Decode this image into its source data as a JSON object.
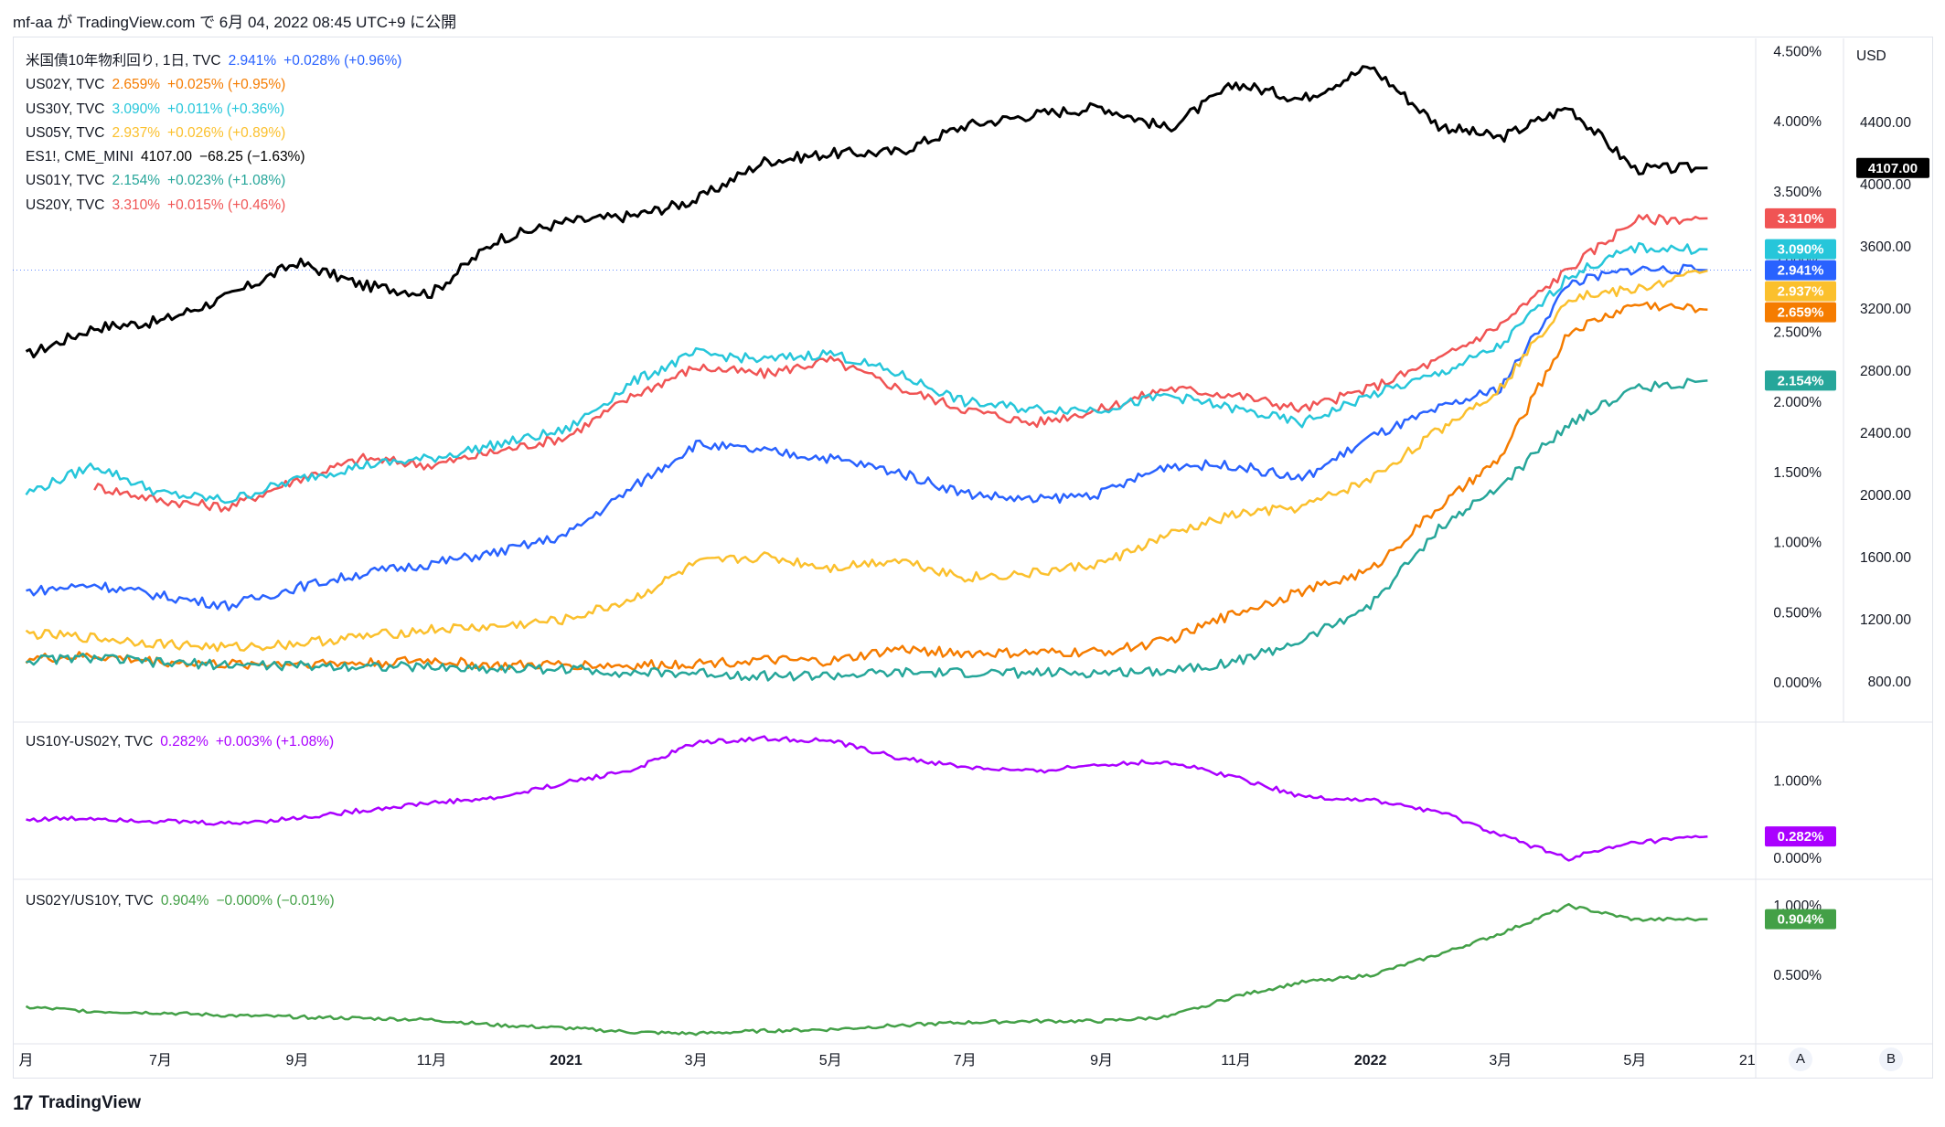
{
  "header": {
    "text": "mf-aa が TradingView.com で 6月 04, 2022 08:45 UTC+9 に公開"
  },
  "legend_main": [
    {
      "name": "米国債10年物利回り, 1日, TVC",
      "value": "2.941%",
      "change": "+0.028% (+0.96%)",
      "color": "#2962ff"
    },
    {
      "name": "US02Y, TVC",
      "value": "2.659%",
      "change": "+0.025% (+0.95%)",
      "color": "#f57c00"
    },
    {
      "name": "US30Y, TVC",
      "value": "3.090%",
      "change": "+0.011% (+0.36%)",
      "color": "#26c6da"
    },
    {
      "name": "US05Y, TVC",
      "value": "2.937%",
      "change": "+0.026% (+0.89%)",
      "color": "#fbc02d"
    },
    {
      "name": "ES1!, CME_MINI",
      "value": "4107.00",
      "change": "−68.25 (−1.63%)",
      "color": "#000000"
    },
    {
      "name": "US01Y, TVC",
      "value": "2.154%",
      "change": "+0.023% (+1.08%)",
      "color": "#26a69a"
    },
    {
      "name": "US20Y, TVC",
      "value": "3.310%",
      "change": "+0.015% (+0.46%)",
      "color": "#f05454"
    }
  ],
  "legend_pane2": {
    "name": "US10Y-US02Y, TVC",
    "value": "0.282%",
    "change": "+0.003% (+1.08%)",
    "color": "#aa00ff"
  },
  "legend_pane3": {
    "name": "US02Y/US10Y, TVC",
    "value": "0.904%",
    "change": "−0.000% (−0.01%)",
    "color": "#43a047"
  },
  "axis_right1": [
    "4.500%",
    "4.000%",
    "3.500%",
    "3.000%",
    "2.500%",
    "2.000%",
    "1.500%",
    "1.000%",
    "0.500%",
    "0.000%"
  ],
  "axis_right1_values": [
    4.5,
    4.0,
    3.5,
    3.0,
    2.5,
    2.0,
    1.5,
    1.0,
    0.5,
    0.0
  ],
  "axis_right2_unit": "USD",
  "axis_right2": [
    "4400.00",
    "4000.00",
    "3600.00",
    "3200.00",
    "2800.00",
    "2400.00",
    "2000.00",
    "1600.00",
    "1200.00",
    "800.00"
  ],
  "axis_right2_values": [
    4400,
    4000,
    3600,
    3200,
    2800,
    2400,
    2000,
    1600,
    1200,
    800
  ],
  "axis_pane2": [
    "1.000%",
    "0.000%"
  ],
  "axis_pane2_values": [
    1.0,
    0.0
  ],
  "axis_pane3": [
    "1.000%",
    "0.500%"
  ],
  "axis_pane3_values": [
    1.0,
    0.5
  ],
  "x_ticks": [
    "月",
    "7月",
    "9月",
    "11月",
    "2021",
    "3月",
    "5月",
    "7月",
    "9月",
    "11月",
    "2022",
    "3月",
    "5月",
    "21"
  ],
  "x_tick_dates": [
    "2020-05-01",
    "2020-07-01",
    "2020-09-01",
    "2020-11-01",
    "2021-01-01",
    "2021-03-01",
    "2021-05-01",
    "2021-07-01",
    "2021-09-01",
    "2021-11-01",
    "2022-01-01",
    "2022-03-01",
    "2022-05-01",
    "2022-06-21"
  ],
  "price_labels": [
    {
      "text": "4107.00",
      "color": "#000000"
    },
    {
      "text": "3.310%",
      "color": "#f05454"
    },
    {
      "text": "3.090%",
      "color": "#26c6da"
    },
    {
      "text": "2.941%",
      "color": "#2962ff"
    },
    {
      "text": "2.937%",
      "color": "#fbc02d"
    },
    {
      "text": "2.659%",
      "color": "#f57c00"
    },
    {
      "text": "2.154%",
      "color": "#26a69a"
    },
    {
      "text": "0.282%",
      "color": "#aa00ff"
    },
    {
      "text": "0.904%",
      "color": "#43a047"
    }
  ],
  "scale_buttons": {
    "a": "A",
    "b": "B"
  },
  "footer": {
    "brand": "TradingView",
    "logo": "17"
  },
  "chart_data": {
    "type": "line",
    "x_dates": [
      "2020-05-01",
      "2020-06-01",
      "2020-07-01",
      "2020-08-01",
      "2020-09-01",
      "2020-10-01",
      "2020-11-01",
      "2020-12-01",
      "2021-01-01",
      "2021-02-01",
      "2021-03-01",
      "2021-04-01",
      "2021-05-01",
      "2021-06-01",
      "2021-07-01",
      "2021-08-01",
      "2021-09-01",
      "2021-10-01",
      "2021-11-01",
      "2021-12-01",
      "2022-01-01",
      "2022-02-01",
      "2022-03-01",
      "2022-04-01",
      "2022-05-01",
      "2022-06-03"
    ],
    "series": [
      {
        "name": "ES1!, CME_MINI",
        "axis": "USD",
        "color": "#000000",
        "values": [
          2900,
          3080,
          3120,
          3280,
          3500,
          3350,
          3300,
          3650,
          3760,
          3800,
          3900,
          4150,
          4200,
          4210,
          4380,
          4450,
          4500,
          4360,
          4650,
          4550,
          4760,
          4380,
          4300,
          4500,
          4100,
          4107
        ]
      },
      {
        "name": "US20Y, TVC",
        "axis": "%",
        "color": "#f05454",
        "values": [
          1.15,
          1.4,
          1.3,
          1.25,
          1.45,
          1.6,
          1.55,
          1.65,
          1.75,
          2.05,
          2.25,
          2.2,
          2.3,
          2.1,
          1.95,
          1.85,
          1.95,
          2.1,
          2.05,
          1.95,
          2.1,
          2.3,
          2.55,
          2.95,
          3.3,
          3.31
        ]
      },
      {
        "name": "US30Y, TVC",
        "axis": "%",
        "color": "#26c6da",
        "values": [
          1.35,
          1.55,
          1.35,
          1.3,
          1.45,
          1.55,
          1.6,
          1.7,
          1.8,
          2.15,
          2.35,
          2.3,
          2.35,
          2.2,
          2.0,
          1.95,
          1.95,
          2.05,
          1.95,
          1.85,
          2.05,
          2.2,
          2.4,
          2.9,
          3.1,
          3.09
        ]
      },
      {
        "name": "米国債10年物利回り, 1日, TVC",
        "axis": "%",
        "color": "#2962ff",
        "values": [
          0.65,
          0.7,
          0.62,
          0.55,
          0.68,
          0.78,
          0.85,
          0.93,
          1.05,
          1.4,
          1.7,
          1.65,
          1.6,
          1.5,
          1.35,
          1.3,
          1.35,
          1.55,
          1.55,
          1.45,
          1.75,
          1.95,
          2.1,
          2.85,
          2.95,
          2.941
        ]
      },
      {
        "name": "US05Y, TVC",
        "axis": "%",
        "color": "#fbc02d",
        "values": [
          0.35,
          0.32,
          0.28,
          0.25,
          0.28,
          0.33,
          0.38,
          0.4,
          0.45,
          0.6,
          0.85,
          0.9,
          0.82,
          0.88,
          0.75,
          0.78,
          0.85,
          1.05,
          1.2,
          1.25,
          1.45,
          1.8,
          2.1,
          2.75,
          2.8,
          2.937
        ]
      },
      {
        "name": "US02Y, TVC",
        "axis": "%",
        "color": "#f57c00",
        "values": [
          0.17,
          0.19,
          0.15,
          0.13,
          0.14,
          0.14,
          0.16,
          0.12,
          0.13,
          0.12,
          0.14,
          0.16,
          0.15,
          0.24,
          0.21,
          0.21,
          0.22,
          0.3,
          0.5,
          0.65,
          0.8,
          1.25,
          1.6,
          2.5,
          2.7,
          2.659
        ]
      },
      {
        "name": "US01Y, TVC",
        "axis": "%",
        "color": "#26a69a",
        "values": [
          0.16,
          0.18,
          0.14,
          0.13,
          0.12,
          0.12,
          0.11,
          0.1,
          0.1,
          0.07,
          0.07,
          0.05,
          0.05,
          0.07,
          0.07,
          0.07,
          0.07,
          0.09,
          0.15,
          0.3,
          0.55,
          1.1,
          1.4,
          1.85,
          2.1,
          2.154
        ]
      },
      {
        "name": "US10Y-US02Y, TVC",
        "axis": "%",
        "color": "#aa00ff",
        "values": [
          0.5,
          0.52,
          0.48,
          0.45,
          0.52,
          0.62,
          0.72,
          0.78,
          0.98,
          1.15,
          1.5,
          1.55,
          1.52,
          1.3,
          1.18,
          1.12,
          1.22,
          1.25,
          1.05,
          0.8,
          0.75,
          0.6,
          0.3,
          0.0,
          0.2,
          0.282
        ]
      },
      {
        "name": "US02Y/US10Y, TVC",
        "axis": "%",
        "color": "#43a047",
        "values": [
          0.27,
          0.24,
          0.23,
          0.21,
          0.2,
          0.19,
          0.18,
          0.14,
          0.12,
          0.09,
          0.08,
          0.1,
          0.11,
          0.14,
          0.16,
          0.17,
          0.17,
          0.2,
          0.35,
          0.45,
          0.5,
          0.65,
          0.8,
          1.0,
          0.9,
          0.904
        ]
      }
    ]
  }
}
